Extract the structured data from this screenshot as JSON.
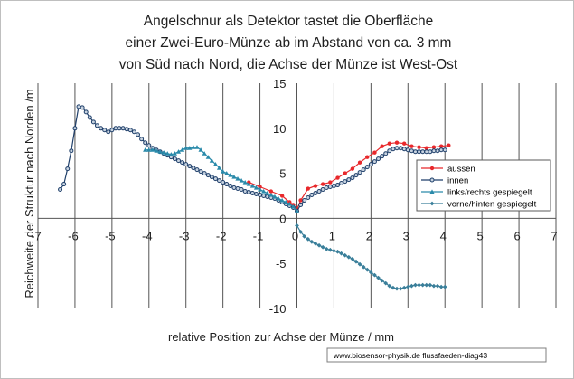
{
  "chart_data": {
    "type": "line",
    "title_lines": [
      "Angelschnur als Detektor tastet die Oberfläche",
      "einer  Zwei-Euro-Münze ab im Abstand von ca. 3 mm",
      "von Süd nach Nord, die Achse der Münze ist West-Ost"
    ],
    "xlabel": "relative Position zur Achse der Münze / mm",
    "ylabel": "Reichweite der Struktur nach Norden /m",
    "credit": "www.biosensor-physik.de  flussfaeden-diag43",
    "xlim": [
      -7,
      7
    ],
    "ylim": [
      -10,
      15
    ],
    "xticks": [
      "-7",
      "-6",
      "-5",
      "-4",
      "-3",
      "-2",
      "-1",
      "0",
      "1",
      "2",
      "3",
      "4",
      "5",
      "6",
      "7"
    ],
    "yticks": [
      "-10",
      "-5",
      "0",
      "5",
      "10",
      "15"
    ],
    "grid": "vertical",
    "legend_position": "right",
    "series": [
      {
        "name": "aussen",
        "color": "#e8282b",
        "marker": "circle",
        "x": [
          -1.3,
          -1.0,
          -0.7,
          -0.4,
          -0.2,
          -0.1,
          0.0,
          0.1,
          0.3,
          0.5,
          0.7,
          0.9,
          1.1,
          1.3,
          1.5,
          1.7,
          1.9,
          2.1,
          2.3,
          2.5,
          2.7,
          2.9,
          3.1,
          3.3,
          3.5,
          3.7,
          3.9,
          4.1
        ],
        "y": [
          4.0,
          3.5,
          3.0,
          2.5,
          1.8,
          1.5,
          1.0,
          2.0,
          3.3,
          3.6,
          3.8,
          4.0,
          4.5,
          5.0,
          5.5,
          6.2,
          6.8,
          7.3,
          8.0,
          8.3,
          8.4,
          8.3,
          8.0,
          7.9,
          7.8,
          7.9,
          8.0,
          8.1
        ]
      },
      {
        "name": "innen",
        "color": "#1f3f6a",
        "marker": "ring",
        "x": [
          -6.4,
          -6.3,
          -6.2,
          -6.1,
          -6.0,
          -5.9,
          -5.8,
          -5.7,
          -5.6,
          -5.5,
          -5.4,
          -5.3,
          -5.2,
          -5.1,
          -5.0,
          -4.9,
          -4.8,
          -4.7,
          -4.6,
          -4.5,
          -4.4,
          -4.3,
          -4.2,
          -4.1,
          -4.0,
          -3.9,
          -3.8,
          -3.7,
          -3.6,
          -3.5,
          -3.4,
          -3.3,
          -3.2,
          -3.1,
          -3.0,
          -2.9,
          -2.8,
          -2.7,
          -2.6,
          -2.5,
          -2.4,
          -2.3,
          -2.2,
          -2.1,
          -2.0,
          -1.9,
          -1.8,
          -1.7,
          -1.6,
          -1.5,
          -1.4,
          -1.3,
          -1.2,
          -1.1,
          -1.0,
          -0.9,
          -0.8,
          -0.7,
          -0.6,
          -0.5,
          -0.4,
          -0.3,
          -0.2,
          -0.1,
          0.0,
          0.1,
          0.2,
          0.3,
          0.4,
          0.5,
          0.6,
          0.7,
          0.8,
          0.9,
          1.0,
          1.1,
          1.2,
          1.3,
          1.4,
          1.5,
          1.6,
          1.7,
          1.8,
          1.9,
          2.0,
          2.1,
          2.2,
          2.3,
          2.4,
          2.5,
          2.6,
          2.7,
          2.8,
          2.9,
          3.0,
          3.1,
          3.2,
          3.3,
          3.4,
          3.5,
          3.6,
          3.7,
          3.8,
          3.9,
          4.0
        ],
        "y": [
          3.2,
          3.8,
          5.5,
          7.5,
          10.0,
          12.4,
          12.3,
          11.8,
          11.2,
          10.7,
          10.3,
          10.0,
          9.8,
          9.6,
          9.8,
          10.0,
          10.0,
          10.0,
          9.9,
          9.8,
          9.6,
          9.3,
          8.8,
          8.4,
          8.1,
          7.8,
          7.6,
          7.4,
          7.2,
          7.0,
          6.8,
          6.6,
          6.4,
          6.2,
          6.0,
          5.8,
          5.6,
          5.4,
          5.2,
          5.0,
          4.8,
          4.6,
          4.4,
          4.2,
          4.0,
          3.8,
          3.6,
          3.4,
          3.3,
          3.2,
          3.0,
          2.9,
          2.8,
          2.7,
          2.6,
          2.5,
          2.4,
          2.3,
          2.2,
          2.0,
          1.8,
          1.6,
          1.4,
          1.2,
          0.8,
          1.5,
          2.0,
          2.3,
          2.6,
          2.8,
          3.0,
          3.2,
          3.4,
          3.5,
          3.6,
          3.7,
          3.9,
          4.1,
          4.3,
          4.5,
          4.8,
          5.1,
          5.4,
          5.7,
          6.0,
          6.3,
          6.6,
          6.9,
          7.2,
          7.5,
          7.7,
          7.8,
          7.8,
          7.7,
          7.6,
          7.5,
          7.4,
          7.4,
          7.4,
          7.4,
          7.4,
          7.5,
          7.5,
          7.6,
          7.6
        ]
      },
      {
        "name": "links/rechts gespiegelt",
        "color": "#2a8aaa",
        "marker": "triangle",
        "x": [
          -4.1,
          -4.0,
          -3.9,
          -3.8,
          -3.7,
          -3.6,
          -3.5,
          -3.4,
          -3.3,
          -3.2,
          -3.1,
          -3.0,
          -2.9,
          -2.8,
          -2.7,
          -2.6,
          -2.5,
          -2.4,
          -2.3,
          -2.2,
          -2.1,
          -2.0,
          -1.9,
          -1.8,
          -1.7,
          -1.6,
          -1.5,
          -1.4,
          -1.3,
          -1.2,
          -1.1,
          -1.0,
          -0.9,
          -0.8,
          -0.7,
          -0.6,
          -0.5,
          -0.4,
          -0.3,
          -0.2,
          -0.1,
          0.0
        ],
        "y": [
          7.6,
          7.6,
          7.6,
          7.5,
          7.4,
          7.3,
          7.2,
          7.1,
          7.2,
          7.4,
          7.6,
          7.8,
          7.8,
          7.9,
          7.9,
          7.6,
          7.2,
          6.8,
          6.4,
          6.0,
          5.6,
          5.2,
          5.0,
          4.8,
          4.6,
          4.4,
          4.2,
          4.0,
          3.8,
          3.6,
          3.4,
          3.2,
          3.0,
          2.8,
          2.6,
          2.4,
          2.2,
          2.0,
          1.8,
          1.6,
          1.3,
          0.8
        ]
      },
      {
        "name": "vorne/hinten gespiegelt",
        "color": "#3a7f9a",
        "marker": "diamond",
        "x": [
          0.0,
          0.1,
          0.2,
          0.3,
          0.4,
          0.5,
          0.6,
          0.7,
          0.8,
          0.9,
          1.0,
          1.1,
          1.2,
          1.3,
          1.4,
          1.5,
          1.6,
          1.7,
          1.8,
          1.9,
          2.0,
          2.1,
          2.2,
          2.3,
          2.4,
          2.5,
          2.6,
          2.7,
          2.8,
          2.9,
          3.0,
          3.1,
          3.2,
          3.3,
          3.4,
          3.5,
          3.6,
          3.7,
          3.8,
          3.9,
          4.0
        ],
        "y": [
          -0.8,
          -1.5,
          -2.0,
          -2.3,
          -2.6,
          -2.8,
          -3.0,
          -3.2,
          -3.4,
          -3.5,
          -3.6,
          -3.7,
          -3.9,
          -4.1,
          -4.3,
          -4.5,
          -4.8,
          -5.1,
          -5.4,
          -5.7,
          -6.0,
          -6.3,
          -6.6,
          -6.9,
          -7.2,
          -7.5,
          -7.7,
          -7.8,
          -7.8,
          -7.7,
          -7.6,
          -7.5,
          -7.4,
          -7.4,
          -7.4,
          -7.4,
          -7.4,
          -7.5,
          -7.5,
          -7.6,
          -7.6
        ]
      }
    ]
  }
}
